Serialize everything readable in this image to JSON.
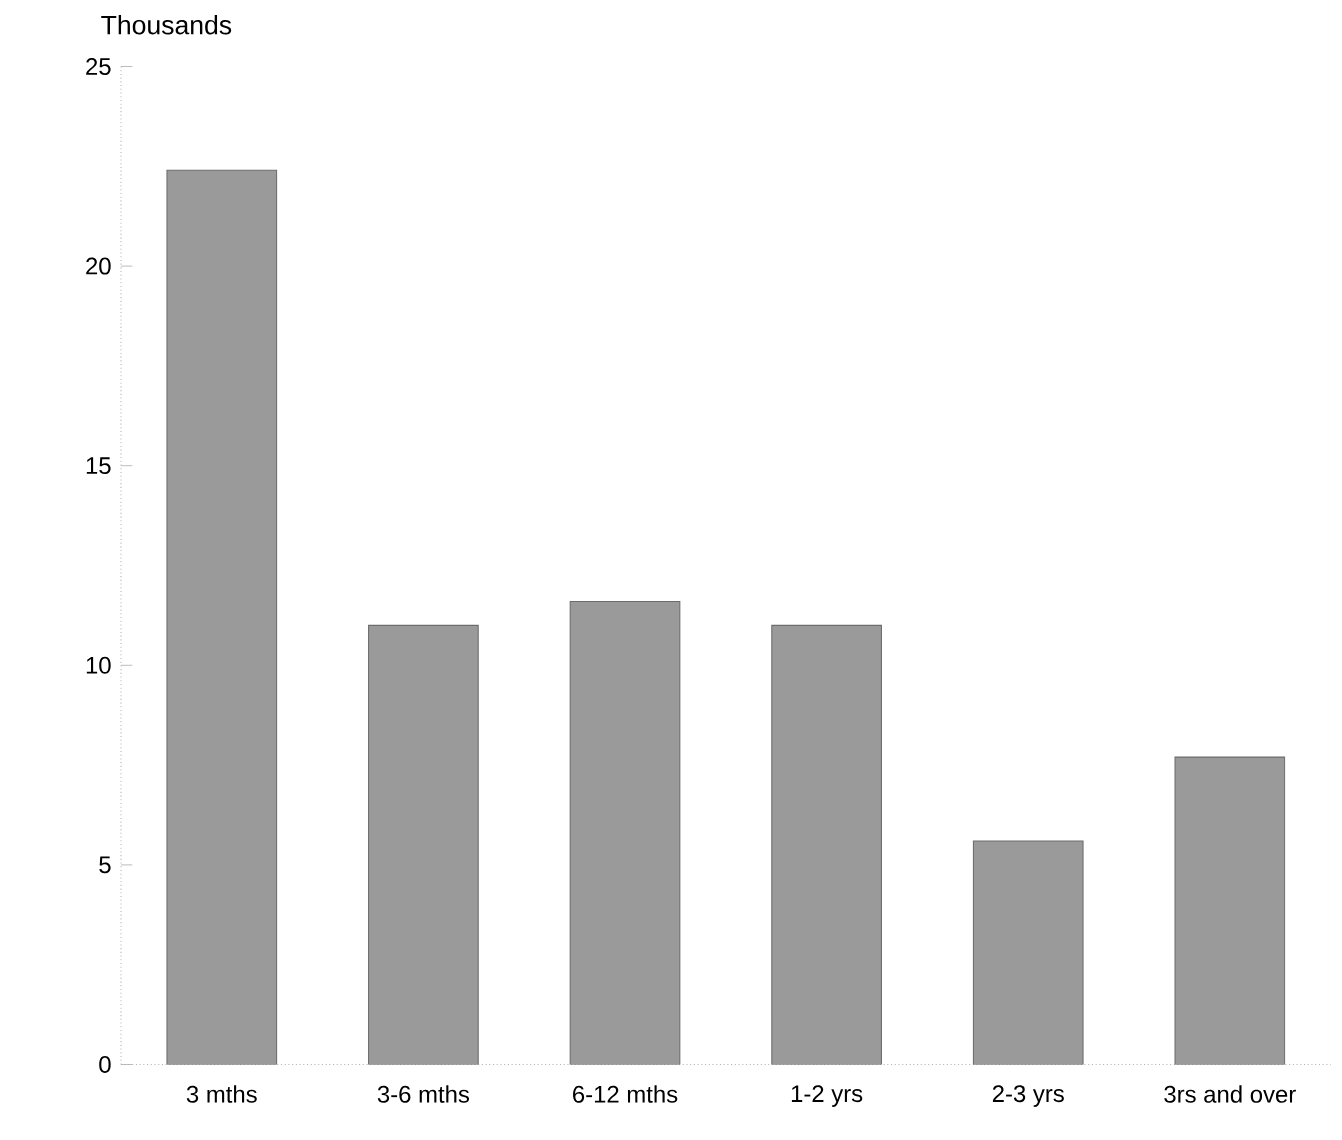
{
  "chart_data": {
    "type": "bar",
    "ylabel": "Thousands",
    "categories": [
      "3 mths",
      "3-6 mths",
      "6-12 mths",
      "1-2 yrs",
      "2-3 yrs",
      "3rs and over"
    ],
    "values": [
      22.4,
      11.0,
      11.6,
      11.0,
      5.6,
      7.7
    ],
    "color": "#9a9a9a",
    "ylim": [
      0,
      25
    ],
    "yticks": [
      0,
      5,
      10,
      15,
      20,
      25
    ],
    "grid": false
  }
}
